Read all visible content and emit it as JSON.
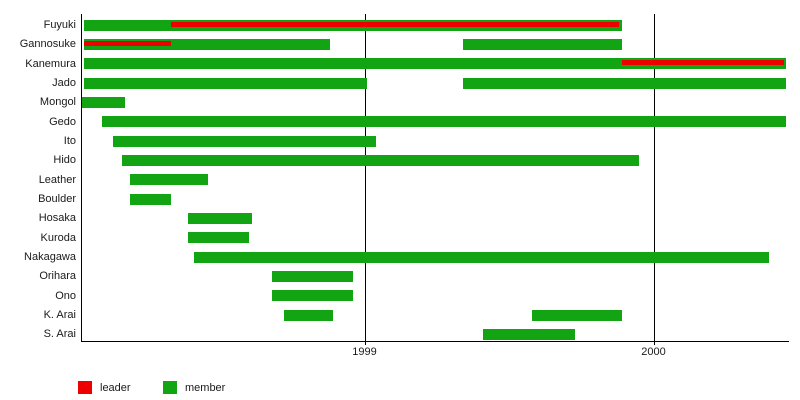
{
  "chart_data": {
    "type": "bar",
    "variant": "gantt-timeline",
    "orientation": "horizontal",
    "title": "",
    "xlabel": "",
    "ylabel": "",
    "grid": true,
    "xlim": [
      1998.02,
      2000.47
    ],
    "x_ticks": [
      {
        "value": 1999,
        "label": "1999"
      },
      {
        "value": 2000,
        "label": "2000"
      }
    ],
    "colors": {
      "member": "#13a413",
      "leader": "#ee0000"
    },
    "legend": [
      {
        "type": "leader",
        "label": "leader"
      },
      {
        "type": "member",
        "label": "member"
      }
    ],
    "legend_position": "bottom-left",
    "rows": [
      {
        "label": "Fuyuki",
        "segments": [
          {
            "type": "member",
            "start": 1998.03,
            "end": 1999.89
          },
          {
            "type": "leader",
            "start": 1998.33,
            "end": 1999.88
          }
        ]
      },
      {
        "label": "Gannosuke",
        "segments": [
          {
            "type": "member",
            "start": 1998.03,
            "end": 1998.88
          },
          {
            "type": "leader",
            "start": 1998.03,
            "end": 1998.33
          },
          {
            "type": "member",
            "start": 1999.34,
            "end": 1999.89
          }
        ]
      },
      {
        "label": "Kanemura",
        "segments": [
          {
            "type": "member",
            "start": 1998.03,
            "end": 2000.46
          },
          {
            "type": "leader",
            "start": 1999.89,
            "end": 2000.45
          }
        ]
      },
      {
        "label": "Jado",
        "segments": [
          {
            "type": "member",
            "start": 1998.03,
            "end": 1999.01
          },
          {
            "type": "member",
            "start": 1999.34,
            "end": 2000.46
          }
        ]
      },
      {
        "label": "Mongol",
        "segments": [
          {
            "type": "member",
            "start": 1998.02,
            "end": 1998.17
          }
        ]
      },
      {
        "label": "Gedo",
        "segments": [
          {
            "type": "member",
            "start": 1998.09,
            "end": 2000.46
          }
        ]
      },
      {
        "label": "Ito",
        "segments": [
          {
            "type": "member",
            "start": 1998.13,
            "end": 1999.04
          }
        ]
      },
      {
        "label": "Hido",
        "segments": [
          {
            "type": "member",
            "start": 1998.16,
            "end": 1999.95
          }
        ]
      },
      {
        "label": "Leather",
        "segments": [
          {
            "type": "member",
            "start": 1998.19,
            "end": 1998.46
          }
        ]
      },
      {
        "label": "Boulder",
        "segments": [
          {
            "type": "member",
            "start": 1998.19,
            "end": 1998.33
          }
        ]
      },
      {
        "label": "Hosaka",
        "segments": [
          {
            "type": "member",
            "start": 1998.39,
            "end": 1998.61
          }
        ]
      },
      {
        "label": "Kuroda",
        "segments": [
          {
            "type": "member",
            "start": 1998.39,
            "end": 1998.6
          }
        ]
      },
      {
        "label": "Nakagawa",
        "segments": [
          {
            "type": "member",
            "start": 1998.41,
            "end": 2000.4
          }
        ]
      },
      {
        "label": "Orihara",
        "segments": [
          {
            "type": "member",
            "start": 1998.68,
            "end": 1998.96
          }
        ]
      },
      {
        "label": "Ono",
        "segments": [
          {
            "type": "member",
            "start": 1998.68,
            "end": 1998.96
          }
        ]
      },
      {
        "label": "K. Arai",
        "segments": [
          {
            "type": "member",
            "start": 1998.72,
            "end": 1998.89
          },
          {
            "type": "member",
            "start": 1999.58,
            "end": 1999.89
          }
        ]
      },
      {
        "label": "S. Arai",
        "segments": [
          {
            "type": "member",
            "start": 1999.41,
            "end": 1999.73
          }
        ]
      }
    ]
  }
}
